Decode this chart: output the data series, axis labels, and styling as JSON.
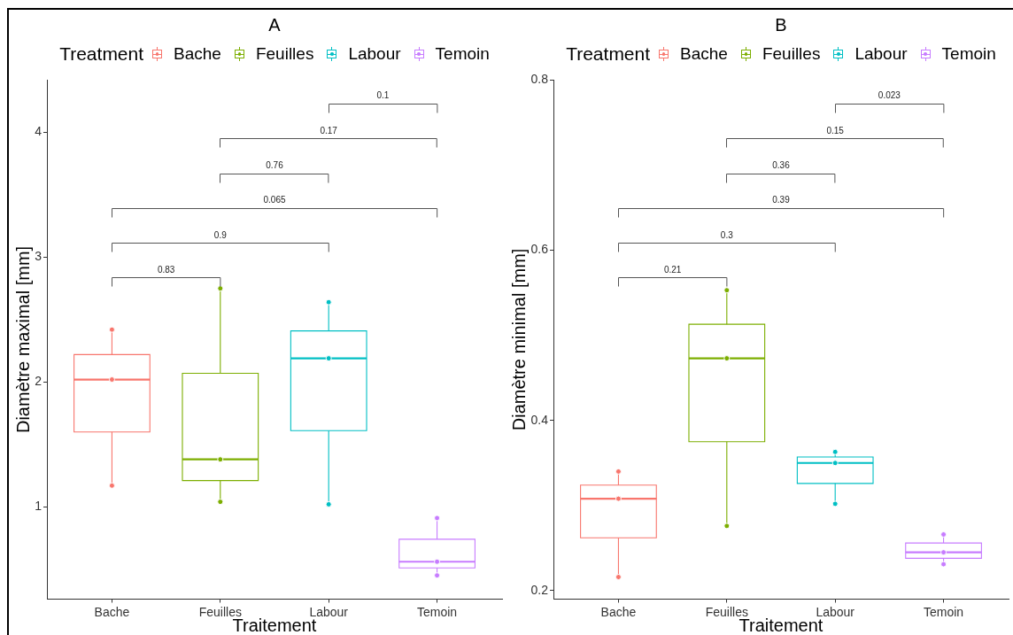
{
  "chart_data": [
    {
      "type": "box",
      "title": "A",
      "xlabel": "Traitement",
      "ylabel": "Diamètre maximal [mm]",
      "legend_title": "Treatment",
      "legend": "top",
      "marker": "circle",
      "categories": [
        "Bache",
        "Feuilles",
        "Labour",
        "Temoin"
      ],
      "series": [
        {
          "name": "Bache",
          "color": "#f8766d",
          "boxes": [
            {
              "low": 1.17,
              "q1": 1.6,
              "median": 2.02,
              "q3": 2.22,
              "high": 2.42
            },
            null,
            null,
            null
          ]
        },
        {
          "name": "Feuilles",
          "color": "#7cae00",
          "boxes": [
            null,
            {
              "low": 1.04,
              "q1": 1.21,
              "median": 1.38,
              "q3": 2.07,
              "high": 2.75
            },
            null,
            null
          ]
        },
        {
          "name": "Labour",
          "color": "#00bfc4",
          "boxes": [
            null,
            null,
            {
              "low": 1.02,
              "q1": 1.61,
              "median": 2.19,
              "q3": 2.41,
              "high": 2.64
            },
            null
          ]
        },
        {
          "name": "Temoin",
          "color": "#c77cff",
          "boxes": [
            null,
            null,
            null,
            {
              "low": 0.45,
              "q1": 0.51,
              "median": 0.56,
              "q3": 0.74,
              "high": 0.91
            }
          ]
        },
        {
          "type": "scatter",
          "color": "#f8766d",
          "x": [
            "Bache",
            "Bache",
            "Bache"
          ],
          "values": [
            2.42,
            2.02,
            1.17
          ]
        },
        {
          "type": "scatter",
          "color": "#7cae00",
          "x": [
            "Feuilles",
            "Feuilles",
            "Feuilles"
          ],
          "values": [
            2.75,
            1.38,
            1.04
          ]
        },
        {
          "type": "scatter",
          "color": "#00bfc4",
          "x": [
            "Labour",
            "Labour",
            "Labour"
          ],
          "values": [
            2.64,
            2.19,
            1.02
          ]
        },
        {
          "type": "scatter",
          "color": "#c77cff",
          "x": [
            "Temoin",
            "Temoin",
            "Temoin"
          ],
          "values": [
            0.91,
            0.56,
            0.45
          ]
        }
      ],
      "ylim": [
        0.26,
        4.42
      ],
      "yticks": [
        1,
        2,
        3,
        4
      ],
      "annotations": [
        "0.1",
        "0.17",
        "0.76",
        "0.065",
        "0.9",
        "0.83"
      ]
    },
    {
      "type": "box",
      "title": "B",
      "xlabel": "Traitement",
      "ylabel": "Diamètre minimal [mm]",
      "legend_title": "Treatment",
      "legend": "top",
      "marker": "circle",
      "categories": [
        "Bache",
        "Feuilles",
        "Labour",
        "Temoin"
      ],
      "series": [
        {
          "name": "Bache",
          "color": "#f8766d",
          "boxes": [
            {
              "low": 0.216,
              "q1": 0.262,
              "median": 0.308,
              "q3": 0.324,
              "high": 0.34
            },
            null,
            null,
            null
          ]
        },
        {
          "name": "Feuilles",
          "color": "#7cae00",
          "boxes": [
            null,
            {
              "low": 0.276,
              "q1": 0.375,
              "median": 0.473,
              "q3": 0.513,
              "high": 0.553
            },
            null,
            null
          ]
        },
        {
          "name": "Labour",
          "color": "#00bfc4",
          "boxes": [
            null,
            null,
            {
              "low": 0.302,
              "q1": 0.326,
              "median": 0.35,
              "q3": 0.357,
              "high": 0.363
            },
            null
          ]
        },
        {
          "name": "Temoin",
          "color": "#c77cff",
          "boxes": [
            null,
            null,
            null,
            {
              "low": 0.231,
              "q1": 0.238,
              "median": 0.245,
              "q3": 0.256,
              "high": 0.266
            }
          ]
        },
        {
          "type": "scatter",
          "color": "#f8766d",
          "x": [
            "Bache",
            "Bache",
            "Bache"
          ],
          "values": [
            0.34,
            0.308,
            0.216
          ]
        },
        {
          "type": "scatter",
          "color": "#7cae00",
          "x": [
            "Feuilles",
            "Feuilles",
            "Feuilles"
          ],
          "values": [
            0.553,
            0.473,
            0.276
          ]
        },
        {
          "type": "scatter",
          "color": "#00bfc4",
          "x": [
            "Labour",
            "Labour",
            "Labour"
          ],
          "values": [
            0.363,
            0.35,
            0.302
          ]
        },
        {
          "type": "scatter",
          "color": "#c77cff",
          "x": [
            "Temoin",
            "Temoin",
            "Temoin"
          ],
          "values": [
            0.266,
            0.245,
            0.231
          ]
        }
      ],
      "ylim": [
        0.19,
        0.8
      ],
      "yticks": [
        0.2,
        0.4,
        0.6,
        0.8
      ],
      "annotations": [
        "0.023",
        "0.15",
        "0.36",
        "0.39",
        "0.3",
        "0.21"
      ]
    }
  ]
}
